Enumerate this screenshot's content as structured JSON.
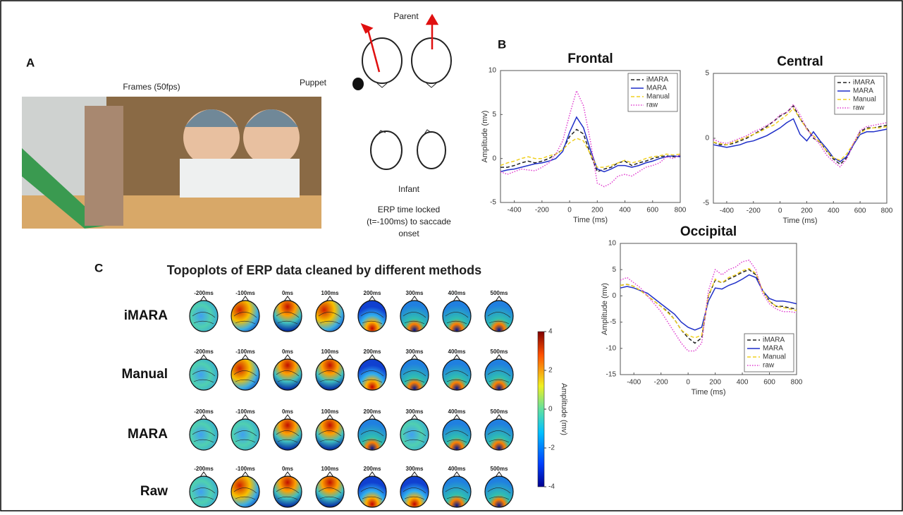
{
  "panel_a": {
    "label": "A",
    "frames_caption": "Frames (50fps)",
    "puppet": "Puppet",
    "parent": "Parent",
    "infant": "Infant",
    "erp_note": [
      "ERP time locked",
      "(t=-100ms) to saccade",
      "onset"
    ]
  },
  "panel_b": {
    "label": "B"
  },
  "panel_c": {
    "label": "C"
  },
  "chart_data": [
    {
      "type": "line",
      "title": "Frontal",
      "x_label": "Time (ms)",
      "y_label": "Amplitude (mv)",
      "legend": "upper right",
      "x": [
        -500,
        -450,
        -400,
        -350,
        -300,
        -250,
        -200,
        -150,
        -100,
        -50,
        0,
        50,
        100,
        150,
        200,
        250,
        300,
        350,
        400,
        450,
        500,
        550,
        600,
        650,
        700,
        750,
        800
      ],
      "xlim": [
        -500,
        800
      ],
      "xticks": [
        -400,
        -200,
        0,
        200,
        400,
        600,
        800
      ],
      "ylim": [
        -5,
        10
      ],
      "yticks": [
        -5,
        0,
        5,
        10
      ],
      "series": [
        {
          "name": "iMARA",
          "color": "#222222",
          "style": "dashed",
          "values": [
            -1,
            -1,
            -0.8,
            -0.5,
            -0.3,
            -0.5,
            -0.3,
            0,
            0.5,
            1,
            2.5,
            3.3,
            2.8,
            0.5,
            -1.5,
            -1.2,
            -1,
            -0.5,
            -0.3,
            -0.8,
            -0.5,
            -0.3,
            0,
            0.2,
            0.3,
            0.2,
            0.3
          ]
        },
        {
          "name": "MARA",
          "color": "#1f2fc8",
          "style": "solid",
          "values": [
            -1.5,
            -1.3,
            -1.2,
            -1,
            -0.8,
            -0.6,
            -0.5,
            -0.3,
            0,
            0.8,
            3,
            4.7,
            3.5,
            1,
            -1.2,
            -1.5,
            -1.2,
            -0.8,
            -0.8,
            -1,
            -0.8,
            -0.5,
            -0.3,
            0,
            0.2,
            0.3,
            0.2
          ]
        },
        {
          "name": "Manual",
          "color": "#f0d020",
          "style": "dashed",
          "values": [
            -0.8,
            -0.5,
            -0.3,
            0,
            0.2,
            0,
            0,
            0.3,
            0.5,
            1,
            1.8,
            2.3,
            2,
            0.5,
            -1,
            -1,
            -0.8,
            -0.5,
            -0.2,
            -0.5,
            -0.3,
            0,
            0.2,
            0.3,
            0.5,
            0.4,
            0.5
          ]
        },
        {
          "name": "raw",
          "color": "#e040d0",
          "style": "dotted",
          "values": [
            -1.5,
            -1.8,
            -1.5,
            -1.2,
            -1.3,
            -1.4,
            -1,
            -0.5,
            0.5,
            2,
            5,
            7.7,
            6,
            2,
            -2.8,
            -3.2,
            -2.8,
            -2,
            -1.8,
            -2,
            -1.5,
            -1,
            -0.8,
            -0.5,
            0.2,
            0,
            0.4
          ]
        }
      ]
    },
    {
      "type": "line",
      "title": "Central",
      "x_label": "Time (ms)",
      "legend": "upper right",
      "x": [
        -500,
        -450,
        -400,
        -350,
        -300,
        -250,
        -200,
        -150,
        -100,
        -50,
        0,
        50,
        100,
        150,
        200,
        250,
        300,
        350,
        400,
        450,
        500,
        550,
        600,
        650,
        700,
        750,
        800
      ],
      "xlim": [
        -500,
        800
      ],
      "xticks": [
        -400,
        -200,
        0,
        200,
        400,
        600,
        800
      ],
      "ylim": [
        -5,
        5
      ],
      "yticks": [
        -5,
        0,
        5
      ],
      "series": [
        {
          "name": "iMARA",
          "color": "#222222",
          "style": "dashed",
          "values": [
            -0.3,
            -0.5,
            -0.5,
            -0.4,
            -0.2,
            0,
            0.3,
            0.6,
            0.9,
            1.3,
            1.7,
            2,
            2.5,
            1.5,
            0.8,
            0,
            -0.3,
            -1,
            -1.6,
            -2,
            -1.5,
            -0.5,
            0.5,
            0.8,
            0.8,
            0.9,
            1
          ]
        },
        {
          "name": "MARA",
          "color": "#1f2fc8",
          "style": "solid",
          "values": [
            -0.5,
            -0.6,
            -0.7,
            -0.6,
            -0.5,
            -0.3,
            -0.2,
            0,
            0.2,
            0.5,
            0.8,
            1.2,
            1.5,
            0.3,
            -0.2,
            0.5,
            -0.2,
            -0.8,
            -1.5,
            -1.8,
            -1.4,
            -0.5,
            0.3,
            0.5,
            0.5,
            0.6,
            0.7
          ]
        },
        {
          "name": "Manual",
          "color": "#f0d020",
          "style": "dashed",
          "values": [
            -0.3,
            -0.4,
            -0.5,
            -0.3,
            -0.1,
            0.1,
            0.3,
            0.5,
            0.8,
            1,
            1.4,
            1.8,
            2.3,
            1.5,
            0.7,
            0.2,
            -0.3,
            -1,
            -1.5,
            -1.7,
            -1.2,
            -0.4,
            0.4,
            0.7,
            0.8,
            0.8,
            0.9
          ]
        },
        {
          "name": "raw",
          "color": "#e040d0",
          "style": "dotted",
          "values": [
            -0.1,
            -0.3,
            -0.4,
            -0.2,
            0,
            0.2,
            0.5,
            0.7,
            1,
            1.3,
            1.8,
            2,
            2.6,
            1.8,
            0.7,
            0.1,
            -0.5,
            -1.3,
            -1.8,
            -2.2,
            -1.6,
            -0.4,
            0.6,
            0.9,
            1,
            1.1,
            1.2
          ]
        }
      ]
    },
    {
      "type": "line",
      "title": "Occipital",
      "x_label": "Time (ms)",
      "y_label": "Amplitude (mv)",
      "legend": "lower right",
      "x": [
        -500,
        -450,
        -400,
        -350,
        -300,
        -250,
        -200,
        -150,
        -100,
        -50,
        0,
        50,
        100,
        150,
        200,
        250,
        300,
        350,
        400,
        450,
        500,
        550,
        600,
        650,
        700,
        750,
        800
      ],
      "xlim": [
        -500,
        800
      ],
      "xticks": [
        -400,
        -200,
        0,
        200,
        400,
        600,
        800
      ],
      "ylim": [
        -15,
        10
      ],
      "yticks": [
        -15,
        -10,
        -5,
        0,
        5,
        10
      ],
      "series": [
        {
          "name": "iMARA",
          "color": "#222222",
          "style": "dashed",
          "values": [
            2,
            2.2,
            1.8,
            1,
            0,
            -1,
            -2,
            -3,
            -4.5,
            -6.5,
            -8,
            -9,
            -8,
            0,
            3,
            2.5,
            3.2,
            3.8,
            4.5,
            5,
            4,
            1,
            -1,
            -2,
            -2,
            -2.3,
            -2.5
          ]
        },
        {
          "name": "MARA",
          "color": "#1f2fc8",
          "style": "solid",
          "values": [
            1.5,
            1.8,
            1.5,
            1,
            0.5,
            -0.5,
            -1.5,
            -2.5,
            -3.5,
            -5,
            -6,
            -6.5,
            -6,
            -1,
            1.5,
            1.3,
            2,
            2.5,
            3.2,
            4,
            3.5,
            1,
            -0.5,
            -1,
            -1,
            -1.2,
            -1.5
          ]
        },
        {
          "name": "Manual",
          "color": "#f0d020",
          "style": "dashed",
          "values": [
            2,
            2.2,
            1.8,
            1,
            0,
            -1,
            -2,
            -3.2,
            -4.5,
            -6.5,
            -7.5,
            -8,
            -7.5,
            0,
            3.2,
            2.5,
            3.5,
            4,
            4.8,
            5.2,
            4.3,
            1,
            -1,
            -2,
            -2.2,
            -2.5,
            -2.8
          ]
        },
        {
          "name": "raw",
          "color": "#e040d0",
          "style": "dotted",
          "values": [
            3,
            3.5,
            2.5,
            1.5,
            0,
            -1.5,
            -3,
            -5,
            -7,
            -9,
            -10.5,
            -10.5,
            -9,
            1,
            5,
            4,
            5,
            5.5,
            6.5,
            6.8,
            5,
            0.5,
            -1.5,
            -2.5,
            -3,
            -3,
            -3.2
          ]
        }
      ]
    }
  ],
  "topoplots": {
    "title": "Topoplots of ERP data cleaned by different methods",
    "times": [
      "-200ms",
      "-100ms",
      "0ms",
      "100ms",
      "200ms",
      "300ms",
      "400ms",
      "500ms"
    ],
    "rows": [
      "iMARA",
      "Manual",
      "MARA",
      "Raw"
    ]
  },
  "colorbar": {
    "label": "Amplitude (mv)",
    "lim": [
      -4,
      4
    ],
    "ticks": [
      -4,
      -2,
      0,
      2,
      4
    ]
  }
}
